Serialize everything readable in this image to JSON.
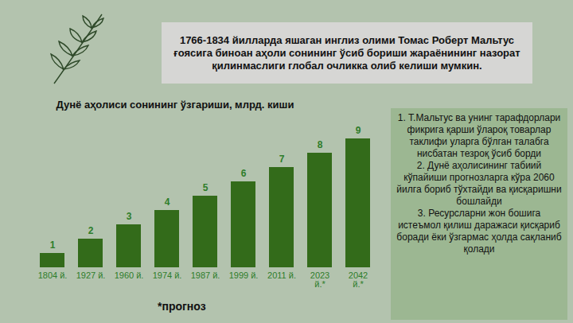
{
  "header": "1766-1834 йилларда яшаган инглиз олими Томас Роберт Мальтус ғоясига биноан аҳоли сонининг ўсиб бориши жараёнининг назорат қилинмаслиги глобал очликка олиб келиши мумкин.",
  "chart_data": {
    "type": "bar",
    "title": "Дунё аҳолиси сонининг ўзгариши, млрд. киши",
    "categories": [
      "1804 й.",
      "1927 й.",
      "1960 й.",
      "1974 й.",
      "1987 й.",
      "1999 й.",
      "2011 й.",
      "2023 й.*",
      "2042 й.*"
    ],
    "values": [
      1,
      2,
      3,
      4,
      5,
      6,
      7,
      8,
      9
    ],
    "color": "#336b1a",
    "ylim": [
      0,
      9
    ],
    "data_labels": true,
    "tick_labels": "x",
    "grid": false
  },
  "footnote": "*прогноз",
  "side_panel": [
    "1. Т.Мальтус ва унинг тарафдорлари фикрига қарши ўлароқ товарлар таклифи уларга бўлган талабга нисбатан тезроқ ўсиб борди",
    "2. Дунё аҳолисининг табиий кўпайиши прогнозларга кўра 2060 йилга бориб тўхтайди ва қисқаришни бошлайди",
    "3. Ресурсларни жон бошига истеъмол қилиш даражаси қисқариб боради ёки ўзгармас ҳолда сақланиб қолади"
  ]
}
